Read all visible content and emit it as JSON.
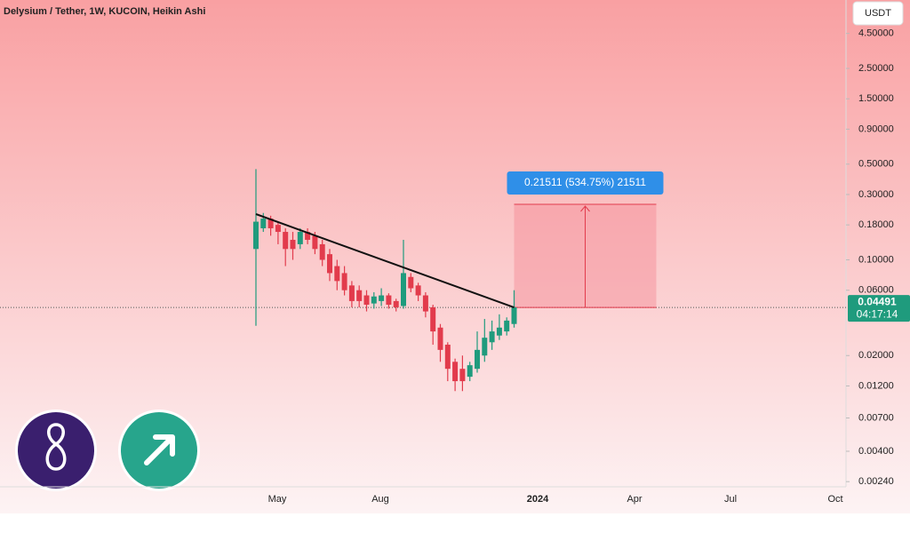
{
  "chart_data": {
    "type": "candlestick",
    "title": "Delysium / Tether, 1W, KUCOIN, Heikin Ashi",
    "currency": "USDT",
    "log_scale": true,
    "ylim": [
      0.0022,
      7.9
    ],
    "yticks": [
      {
        "value": 4.5,
        "label": "4.50000"
      },
      {
        "value": 2.5,
        "label": "2.50000"
      },
      {
        "value": 1.5,
        "label": "1.50000"
      },
      {
        "value": 0.9,
        "label": "0.90000"
      },
      {
        "value": 0.5,
        "label": "0.50000"
      },
      {
        "value": 0.3,
        "label": "0.30000"
      },
      {
        "value": 0.18,
        "label": "0.18000"
      },
      {
        "value": 0.1,
        "label": "0.10000"
      },
      {
        "value": 0.06,
        "label": "0.06000"
      },
      {
        "value": 0.02,
        "label": "0.02000"
      },
      {
        "value": 0.012,
        "label": "0.01200"
      },
      {
        "value": 0.007,
        "label": "0.00700"
      },
      {
        "value": 0.004,
        "label": "0.00400"
      },
      {
        "value": 0.0024,
        "label": "0.00240"
      }
    ],
    "x_labels": [
      "May",
      "Aug",
      "2024",
      "Apr",
      "Jul",
      "Oct"
    ],
    "up_color": "#1f9b7d",
    "down_color": "#e23b4c",
    "open": [
      0.12,
      0.17,
      0.2,
      0.18,
      0.16,
      0.14,
      0.13,
      0.16,
      0.15,
      0.13,
      0.11,
      0.09,
      0.08,
      0.065,
      0.06,
      0.055,
      0.048,
      0.05,
      0.055,
      0.05,
      0.046,
      0.075,
      0.065,
      0.055,
      0.045,
      0.032,
      0.024,
      0.018,
      0.016,
      0.014,
      0.016,
      0.02,
      0.025,
      0.028,
      0.03,
      0.034
    ],
    "high": [
      0.46,
      0.22,
      0.21,
      0.19,
      0.17,
      0.16,
      0.17,
      0.17,
      0.16,
      0.14,
      0.12,
      0.1,
      0.09,
      0.07,
      0.065,
      0.06,
      0.058,
      0.062,
      0.057,
      0.052,
      0.14,
      0.08,
      0.068,
      0.058,
      0.047,
      0.034,
      0.025,
      0.019,
      0.02,
      0.018,
      0.03,
      0.037,
      0.036,
      0.04,
      0.038,
      0.06
    ],
    "low": [
      0.033,
      0.16,
      0.15,
      0.13,
      0.09,
      0.1,
      0.12,
      0.13,
      0.11,
      0.09,
      0.07,
      0.06,
      0.055,
      0.045,
      0.045,
      0.042,
      0.044,
      0.046,
      0.044,
      0.042,
      0.044,
      0.058,
      0.05,
      0.038,
      0.024,
      0.018,
      0.013,
      0.011,
      0.011,
      0.013,
      0.015,
      0.018,
      0.022,
      0.026,
      0.028,
      0.032
    ],
    "close": [
      0.19,
      0.2,
      0.17,
      0.16,
      0.12,
      0.12,
      0.16,
      0.14,
      0.12,
      0.1,
      0.08,
      0.07,
      0.06,
      0.05,
      0.05,
      0.047,
      0.054,
      0.055,
      0.047,
      0.045,
      0.08,
      0.062,
      0.055,
      0.042,
      0.03,
      0.022,
      0.016,
      0.013,
      0.013,
      0.017,
      0.022,
      0.027,
      0.03,
      0.032,
      0.036,
      0.045
    ],
    "last_price": 0.04491,
    "countdown": "04:17:14",
    "position_label": "0.21511 (534.75%) 21511"
  }
}
